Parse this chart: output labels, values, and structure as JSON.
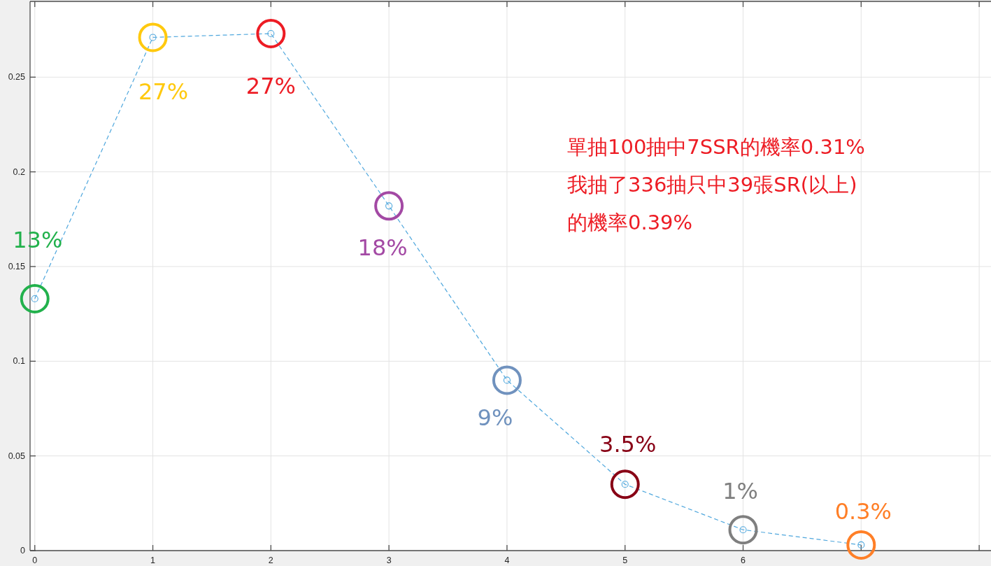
{
  "chart_data": {
    "type": "line",
    "x": [
      0,
      1,
      2,
      3,
      4,
      5,
      6,
      7
    ],
    "xlim": [
      -0.04,
      8.1
    ],
    "xticks": [
      0,
      1,
      2,
      3,
      4,
      5,
      6,
      {
        "value": 7,
        "label": null
      },
      {
        "value": 8,
        "label": null
      }
    ],
    "ylim": [
      0,
      0.29
    ],
    "yticks": [
      0,
      0.05,
      0.1,
      0.15,
      0.2,
      0.25
    ],
    "grid": true,
    "marker": "circle",
    "line_style": "dashed",
    "series": [
      {
        "color": "#4fa7dd",
        "values": [
          0.133,
          0.271,
          0.273,
          0.182,
          0.09,
          0.035,
          0.011,
          0.003
        ]
      },
      {
        "type": "scatter",
        "colors": [
          "#22b14c",
          "#ffc90e",
          "#ed1c24",
          "#a349a4",
          "#7092be",
          "#880015",
          "#7f7f7f",
          "#ff7f27"
        ],
        "values": [
          0.133,
          0.271,
          0.273,
          0.182,
          0.09,
          0.035,
          0.011,
          0.003
        ],
        "value_labels": [
          "13%",
          "27%",
          "27%",
          "18%",
          "9%",
          "3.5%",
          "1%",
          "0.3%"
        ]
      }
    ],
    "annotations": [
      "單抽100抽中7SSR的機率0.31%",
      "我抽了336抽只中39張SR(以上)",
      "的機率0.39%"
    ]
  }
}
